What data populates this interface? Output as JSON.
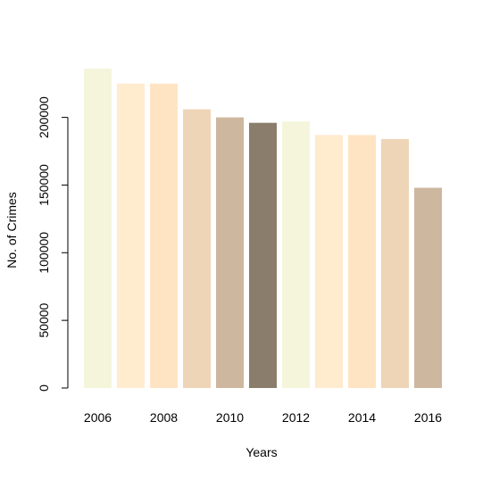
{
  "chart_data": {
    "type": "bar",
    "title": "",
    "xlabel": "Years",
    "ylabel": "No. of Crimes",
    "categories": [
      "2006",
      "2007",
      "2008",
      "2009",
      "2010",
      "2011",
      "2012",
      "2013",
      "2014",
      "2015",
      "2016"
    ],
    "values": [
      236000,
      225000,
      225000,
      206000,
      200000,
      196000,
      197000,
      187000,
      187000,
      184000,
      148000
    ],
    "colors": [
      "#F5F5DC",
      "#FFEBCD",
      "#FFE4C4",
      "#EED5B7",
      "#CDB79E",
      "#8B7D6B",
      "#F5F5DC",
      "#FFEBCD",
      "#FFE4C4",
      "#EED5B7",
      "#CDB79E"
    ],
    "xtick_labels": [
      "2006",
      "2008",
      "2010",
      "2012",
      "2014",
      "2016"
    ],
    "ytick_values": [
      0,
      50000,
      100000,
      150000,
      200000
    ],
    "ytick_labels": [
      "0",
      "50000",
      "100000",
      "150000",
      "200000"
    ],
    "ylim": [
      0,
      236000
    ],
    "grid": false,
    "legend": false
  }
}
